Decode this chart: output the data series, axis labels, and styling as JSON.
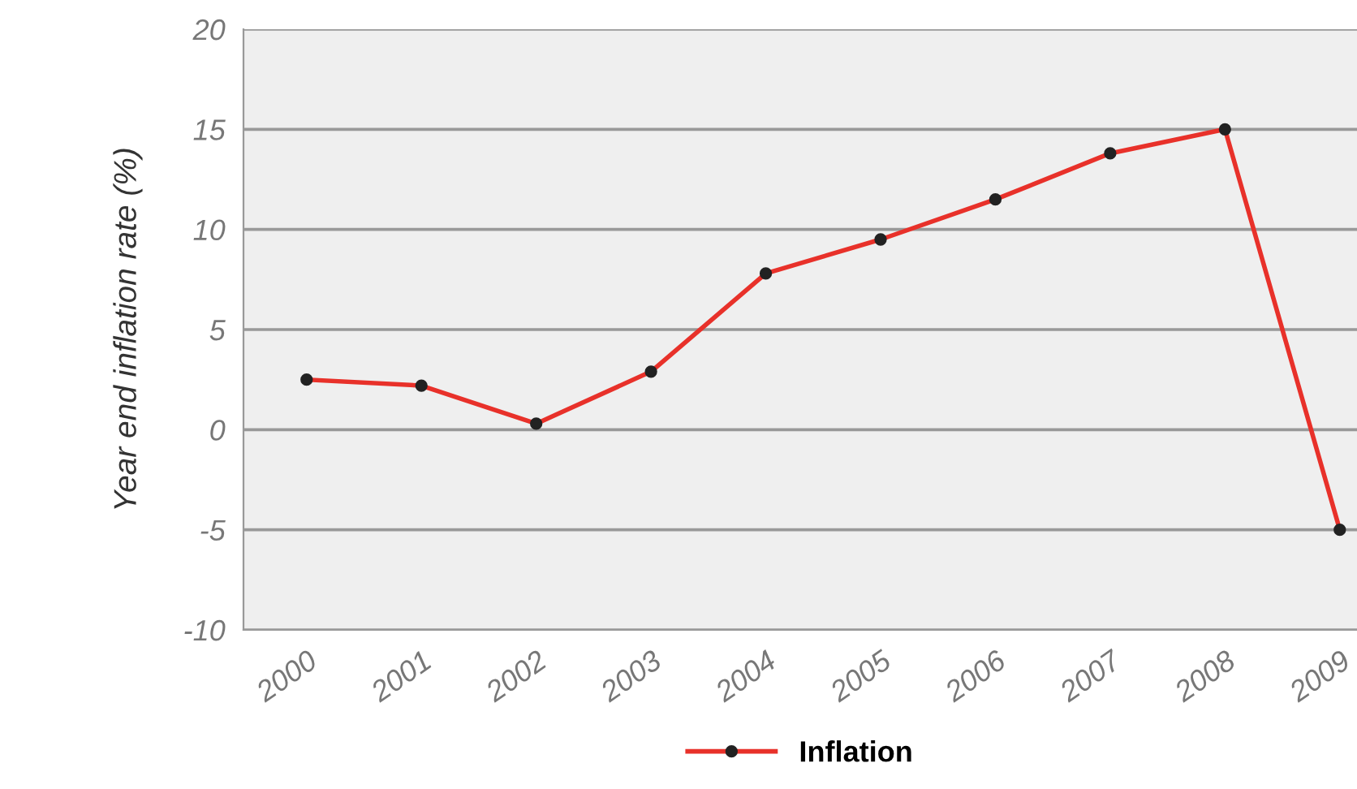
{
  "chart_data": {
    "type": "line",
    "ylabel": "Year end inflation rate (%)",
    "categories": [
      "2000",
      "2001",
      "2002",
      "2003",
      "2004",
      "2005",
      "2006",
      "2007",
      "2008",
      "2009"
    ],
    "series": [
      {
        "name": "Inflation",
        "color": "#e8312a",
        "values": [
          2.5,
          2.2,
          0.3,
          2.9,
          7.8,
          9.5,
          11.5,
          13.8,
          15.0,
          -5.0
        ]
      }
    ],
    "ylim": [
      -10,
      20
    ],
    "yticks": [
      -10,
      -5,
      0,
      5,
      10,
      15,
      20
    ],
    "grid": "y",
    "legend": "bottom",
    "marker": "circle",
    "line_style": "solid"
  }
}
